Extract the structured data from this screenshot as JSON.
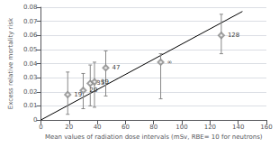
{
  "chart_data": {
    "type": "scatter",
    "x_label": "Mean values of radiation dose intervals (mSv, RBE= 10 for neutrons)",
    "y_label": "Excess relative mortality risk",
    "series": [
      {
        "type": "scatter",
        "marker": "open diamond",
        "color": "#888888",
        "x": [
          19,
          30,
          35,
          38,
          46,
          85,
          128
        ],
        "values": [
          0.018,
          0.021,
          0.026,
          0.027,
          0.037,
          0.041,
          0.06
        ],
        "labels": [
          "19",
          "20",
          "35",
          "39",
          "47",
          "∞",
          "128"
        ],
        "yerr_low": [
          0.014,
          0.013,
          0.016,
          0.018,
          0.02,
          0.026,
          0.013
        ],
        "yerr_high": [
          0.016,
          0.012,
          0.013,
          0.014,
          0.012,
          0.006,
          0.015
        ]
      },
      {
        "type": "line",
        "color": "black",
        "x": [
          0,
          143
        ],
        "values": [
          0.0,
          0.077
        ]
      }
    ],
    "xlim": [
      0,
      160
    ],
    "xticks": [
      0,
      20,
      40,
      60,
      80,
      100,
      120,
      140,
      160
    ],
    "ylim": [
      0,
      0.08
    ],
    "yticks": [
      0,
      0.01,
      0.02,
      0.03,
      0.04,
      0.05,
      0.06,
      0.07,
      0.08
    ],
    "grid": "y"
  }
}
